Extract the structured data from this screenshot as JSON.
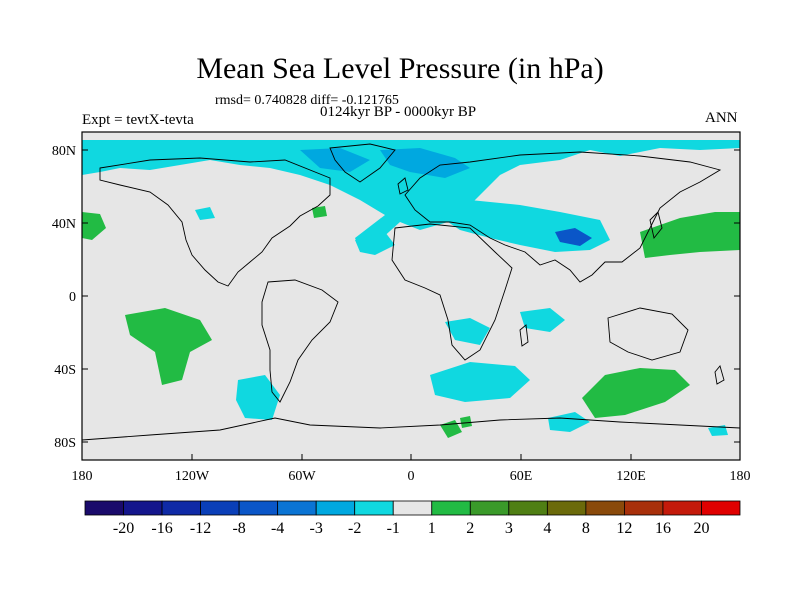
{
  "title": "Mean Sea Level Pressure (in hPa)",
  "stats": "rmsd= 0.740828 diff= -0.121765",
  "period": "0124kyr BP - 0000kyr BP",
  "experiment": "Expt = tevtX-tevta",
  "season": "ANN",
  "lat_ticks": [
    "80N",
    "40N",
    "0",
    "40S",
    "80S"
  ],
  "lon_ticks": [
    "180",
    "120W",
    "60W",
    "0",
    "60E",
    "120E",
    "180"
  ],
  "colorbar": {
    "labels": [
      "-20",
      "-16",
      "-12",
      "-8",
      "-4",
      "-3",
      "-2",
      "-1",
      "1",
      "2",
      "3",
      "4",
      "8",
      "12",
      "16",
      "20"
    ],
    "colors": [
      "#1a0a6b",
      "#14168c",
      "#0f2aa6",
      "#0a3fb8",
      "#0a56c8",
      "#0a74d4",
      "#00a8e0",
      "#10d8e0",
      "#e6e6e6",
      "#22bb44",
      "#3a9a2a",
      "#4f7f14",
      "#6b6a0a",
      "#8a4a0a",
      "#a8300a",
      "#c41a0a",
      "#e00000"
    ]
  }
}
